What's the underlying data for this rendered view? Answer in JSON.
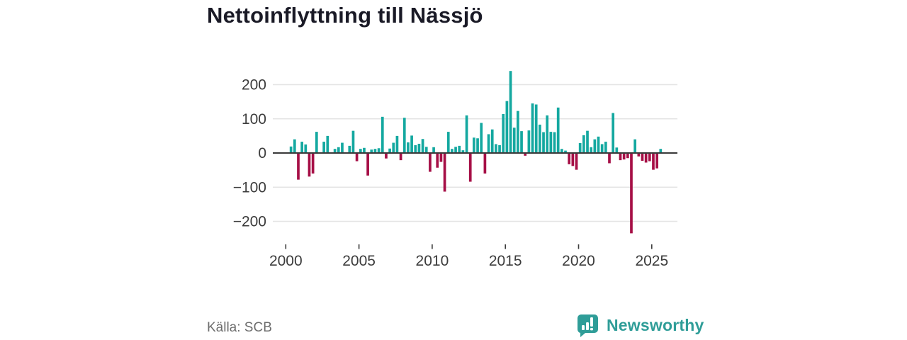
{
  "title": "Nettoinflyttning till Nässjö",
  "source": {
    "label": "Källa: SCB"
  },
  "branding": {
    "name": "Newsworthy",
    "logo_icon": "speech-bubble-bar-chart"
  },
  "colors": {
    "positive_bar": "#14a8a0",
    "negative_bar": "#a60f46",
    "grid_line": "#e4e4e4",
    "zero_line": "#3a3a3a",
    "axis_text": "#3c3c3c",
    "title_text": "#1a1a26",
    "source_text": "#6e6e6e",
    "brand_teal": "#2f9d98"
  },
  "chart_data": {
    "type": "bar",
    "title": "Nettoinflyttning till Nässjö",
    "xlabel": "",
    "ylabel": "",
    "x_unit": "quarter",
    "start_year": 2000,
    "start_quarter": 1,
    "end_label": "2025-Q3",
    "x_tick_years": [
      2000,
      2005,
      2010,
      2015,
      2020,
      2025
    ],
    "x_tick_labels": [
      "2000",
      "2005",
      "2010",
      "2015",
      "2020",
      "2025"
    ],
    "y_ticks": [
      200,
      100,
      0,
      -100,
      -200
    ],
    "y_tick_labels": [
      "200",
      "100",
      "0",
      "−100",
      "−200"
    ],
    "ylim": [
      -250,
      260
    ],
    "grid": true,
    "legend": "none",
    "values": [
      0,
      19,
      40,
      -78,
      33,
      25,
      -69,
      -60,
      62,
      0,
      33,
      50,
      0,
      12,
      17,
      30,
      0,
      21,
      65,
      -24,
      12,
      15,
      -66,
      10,
      12,
      14,
      106,
      -16,
      13,
      30,
      50,
      -21,
      103,
      31,
      51,
      23,
      27,
      41,
      18,
      -55,
      17,
      -43,
      -26,
      -113,
      62,
      12,
      18,
      21,
      8,
      110,
      -84,
      45,
      43,
      88,
      -60,
      55,
      69,
      26,
      23,
      114,
      152,
      240,
      74,
      123,
      64,
      -8,
      66,
      145,
      142,
      83,
      61,
      110,
      62,
      61,
      133,
      12,
      7,
      -33,
      -38,
      -49,
      29,
      52,
      65,
      17,
      40,
      48,
      26,
      33,
      -30,
      117,
      16,
      -21,
      -19,
      -15,
      -235,
      40,
      -10,
      -23,
      -28,
      -24,
      -49,
      -45,
      12
    ]
  }
}
